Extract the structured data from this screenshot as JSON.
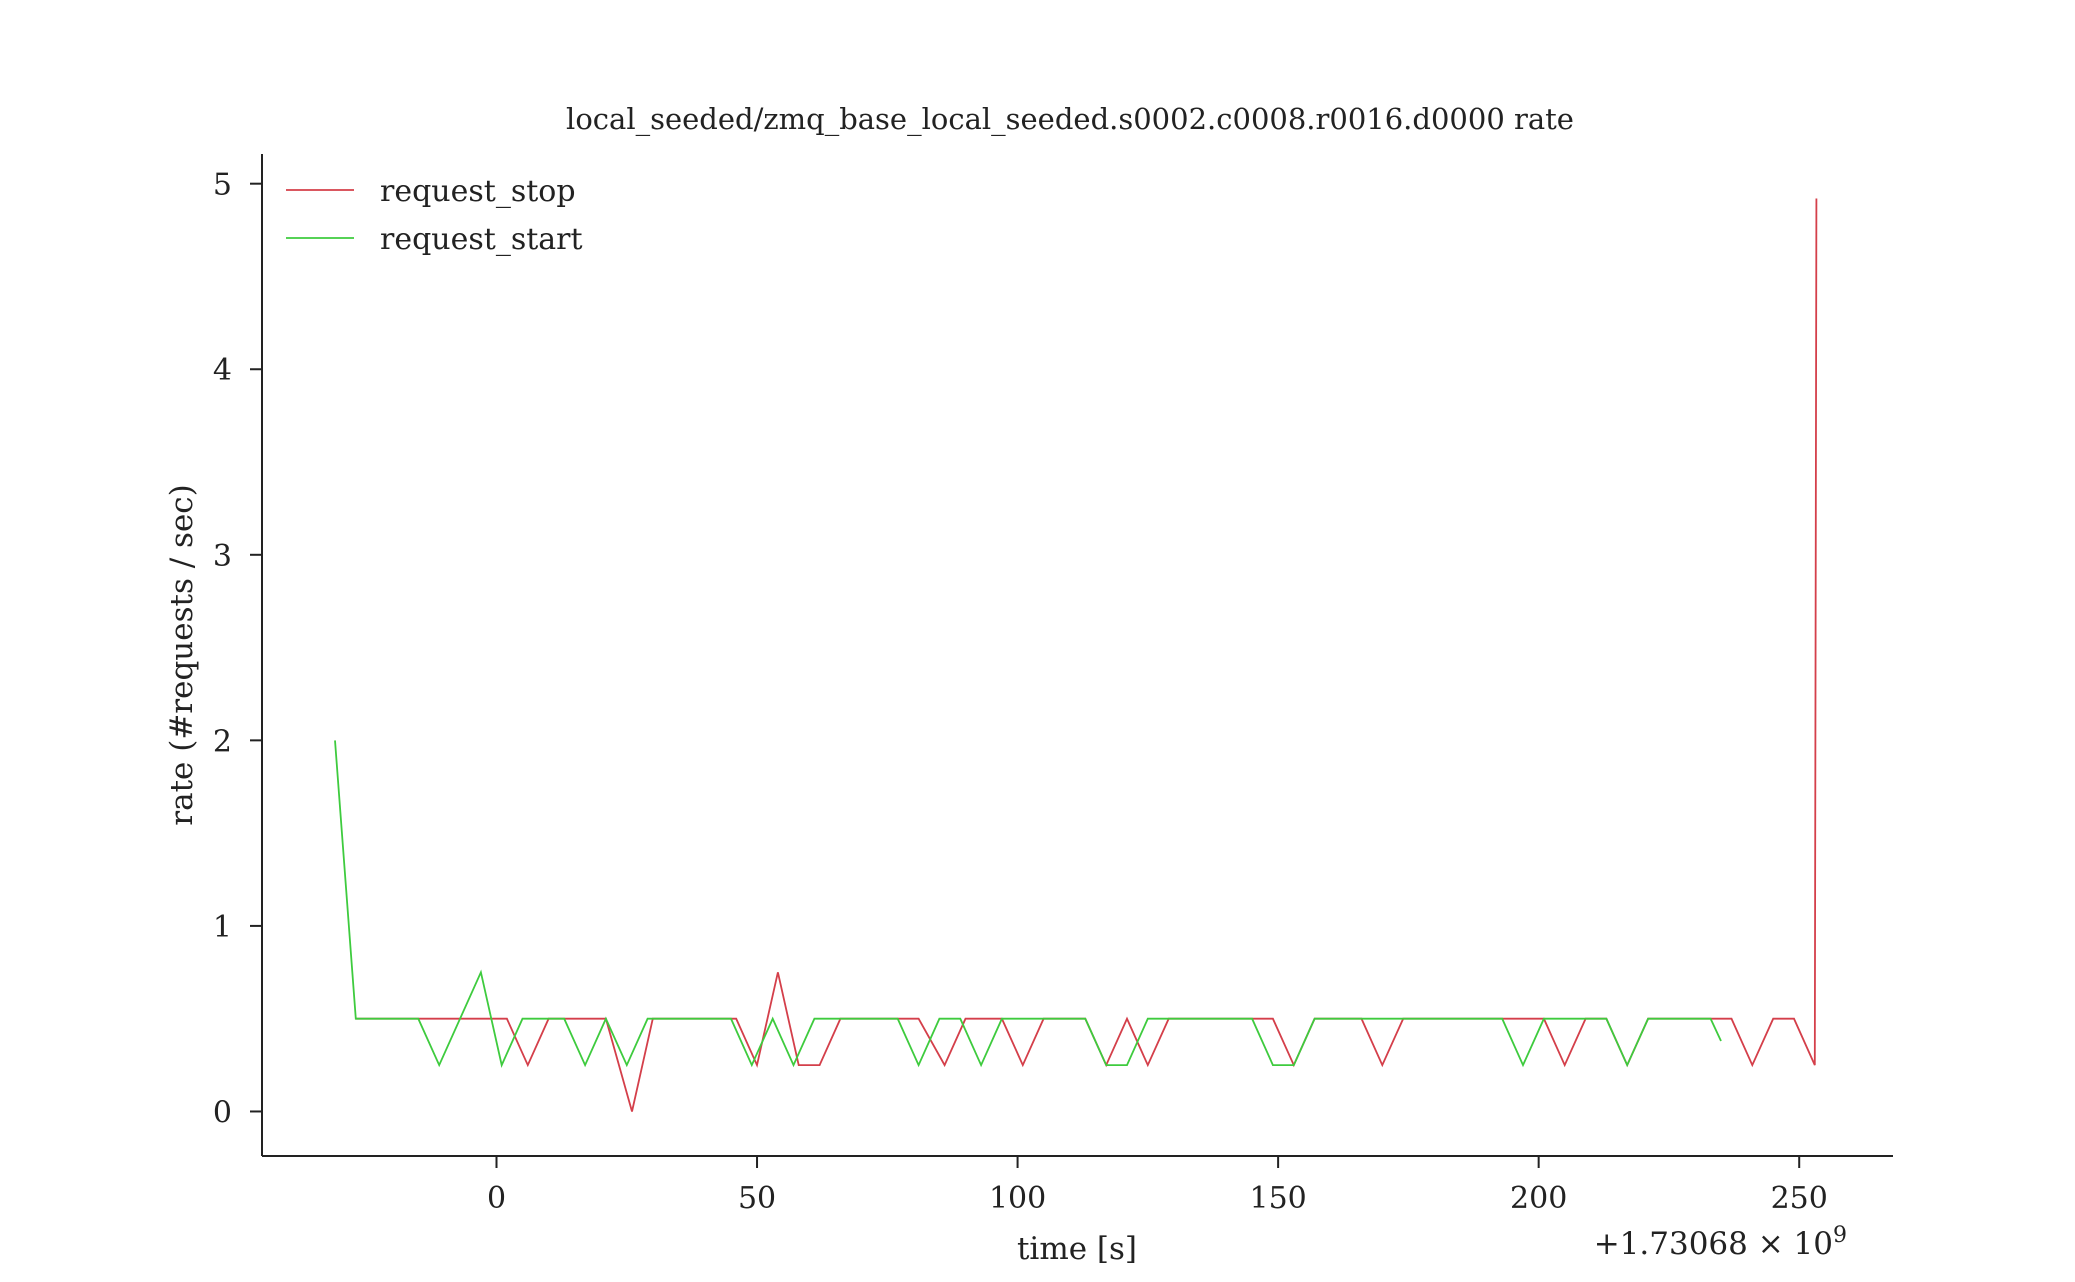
{
  "chart_data": {
    "type": "line",
    "title": "local_seeded/zmq_base_local_seeded.s0002.c0008.r0016.d0000 rate",
    "xlabel": "time [s]",
    "ylabel": "rate (#requests / sec)",
    "x_offset_label": "+1.73068 × 10",
    "x_offset_exponent": "9",
    "xlim": [
      -45,
      268
    ],
    "ylim": [
      -0.24,
      5.16
    ],
    "x_ticks": [
      0,
      50,
      100,
      150,
      200,
      250
    ],
    "x_tick_labels": [
      "0",
      "50",
      "100",
      "150",
      "200",
      "250"
    ],
    "y_ticks": [
      0,
      1,
      2,
      3,
      4,
      5
    ],
    "y_tick_labels": [
      "0",
      "1",
      "2",
      "3",
      "4",
      "5"
    ],
    "grid": false,
    "legend_position": "top-left",
    "series": [
      {
        "name": "request_stop",
        "color": "#d43f4a",
        "points": [
          [
            -27,
            0.5
          ],
          [
            2,
            0.5
          ],
          [
            6,
            0.25
          ],
          [
            10,
            0.5
          ],
          [
            21,
            0.5
          ],
          [
            26,
            0.0
          ],
          [
            30,
            0.5
          ],
          [
            46,
            0.5
          ],
          [
            50,
            0.25
          ],
          [
            54,
            0.75
          ],
          [
            58,
            0.25
          ],
          [
            62,
            0.25
          ],
          [
            66,
            0.5
          ],
          [
            81,
            0.5
          ],
          [
            86,
            0.25
          ],
          [
            90,
            0.5
          ],
          [
            97,
            0.5
          ],
          [
            101,
            0.25
          ],
          [
            105,
            0.5
          ],
          [
            113,
            0.5
          ],
          [
            117,
            0.25
          ],
          [
            121,
            0.5
          ],
          [
            125,
            0.25
          ],
          [
            129,
            0.5
          ],
          [
            149,
            0.5
          ],
          [
            153,
            0.25
          ],
          [
            157,
            0.5
          ],
          [
            166,
            0.5
          ],
          [
            170,
            0.25
          ],
          [
            174,
            0.5
          ],
          [
            201,
            0.5
          ],
          [
            205,
            0.25
          ],
          [
            209,
            0.5
          ],
          [
            213,
            0.5
          ],
          [
            217,
            0.25
          ],
          [
            221,
            0.5
          ],
          [
            237,
            0.5
          ],
          [
            241,
            0.25
          ],
          [
            245,
            0.5
          ],
          [
            249,
            0.5
          ],
          [
            253,
            0.25
          ],
          [
            253.3,
            4.92
          ]
        ]
      },
      {
        "name": "request_start",
        "color": "#3ecb3e",
        "points": [
          [
            -31,
            2.0
          ],
          [
            -27,
            0.5
          ],
          [
            -15,
            0.5
          ],
          [
            -11,
            0.25
          ],
          [
            -3,
            0.75
          ],
          [
            1,
            0.25
          ],
          [
            5,
            0.5
          ],
          [
            13,
            0.5
          ],
          [
            17,
            0.25
          ],
          [
            21,
            0.5
          ],
          [
            25,
            0.25
          ],
          [
            29,
            0.5
          ],
          [
            45,
            0.5
          ],
          [
            49,
            0.25
          ],
          [
            53,
            0.5
          ],
          [
            57,
            0.25
          ],
          [
            61,
            0.5
          ],
          [
            77,
            0.5
          ],
          [
            81,
            0.25
          ],
          [
            85,
            0.5
          ],
          [
            89,
            0.5
          ],
          [
            93,
            0.25
          ],
          [
            97,
            0.5
          ],
          [
            113,
            0.5
          ],
          [
            117,
            0.25
          ],
          [
            121,
            0.25
          ],
          [
            125,
            0.5
          ],
          [
            145,
            0.5
          ],
          [
            149,
            0.25
          ],
          [
            153,
            0.25
          ],
          [
            157,
            0.5
          ],
          [
            193,
            0.5
          ],
          [
            197,
            0.25
          ],
          [
            201,
            0.5
          ],
          [
            213,
            0.5
          ],
          [
            217,
            0.25
          ],
          [
            221,
            0.5
          ],
          [
            233,
            0.5
          ],
          [
            235,
            0.38
          ]
        ]
      }
    ]
  }
}
